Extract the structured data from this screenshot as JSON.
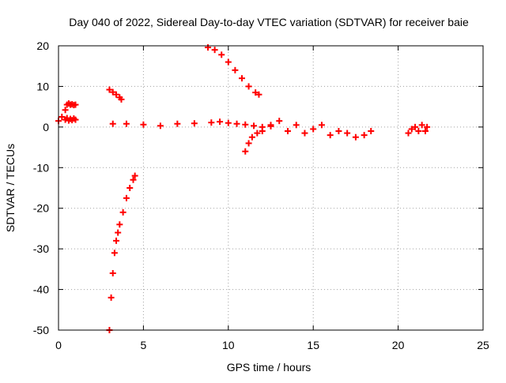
{
  "chart_data": {
    "type": "scatter",
    "title": "Day 040 of 2022, Sidereal Day-to-day VTEC variation (SDTVAR) for receiver baie",
    "xlabel": "GPS time / hours",
    "ylabel": "SDTVAR / TECUs",
    "xlim": [
      0,
      25
    ],
    "ylim": [
      -50,
      20
    ],
    "xticks": [
      0,
      5,
      10,
      15,
      20,
      25
    ],
    "yticks": [
      -50,
      -40,
      -30,
      -20,
      -10,
      0,
      10,
      20
    ],
    "grid": true,
    "marker": "+",
    "color": "#ff0000",
    "series": [
      {
        "segments": [
          {
            "x": [
              0.0,
              0.2,
              0.4,
              0.5,
              0.6,
              0.7,
              0.8,
              0.9,
              1.0
            ],
            "y": [
              1.5,
              2.5,
              1.8,
              2.2,
              1.6,
              2.0,
              1.7,
              2.1,
              1.8
            ]
          },
          {
            "x": [
              0.4,
              0.5,
              0.6,
              0.7,
              0.8,
              0.9,
              1.0
            ],
            "y": [
              4.2,
              5.5,
              5.8,
              5.5,
              5.6,
              5.4,
              5.5
            ]
          },
          {
            "x": [
              3.0,
              3.2,
              3.4,
              3.6,
              3.7
            ],
            "y": [
              9.2,
              8.6,
              8.0,
              7.3,
              6.8
            ]
          },
          {
            "x": [
              3.2,
              4,
              5,
              6,
              7,
              8,
              9,
              9.5,
              10,
              10.5,
              11,
              11.5,
              12,
              12.5
            ],
            "y": [
              0.8,
              0.8,
              0.6,
              0.3,
              0.8,
              0.9,
              1.1,
              1.3,
              1.0,
              0.8,
              0.6,
              0.3,
              0.0,
              0.2
            ]
          },
          {
            "x": [
              8.8,
              9.2,
              9.6,
              10.0,
              10.4,
              10.8,
              11.2,
              11.6,
              11.8
            ],
            "y": [
              19.6,
              19.0,
              17.8,
              16.0,
              14.0,
              12.0,
              10.0,
              8.5,
              8.0
            ]
          },
          {
            "x": [
              11.0,
              11.2,
              11.4,
              11.7,
              12.0,
              12.5,
              13.0,
              13.5,
              14.0,
              14.5,
              15.0,
              15.5,
              16.0,
              16.5,
              17.0,
              17.5,
              18.0,
              18.4
            ],
            "y": [
              -6.0,
              -4.0,
              -2.5,
              -1.5,
              -1.0,
              0.5,
              1.5,
              -1.0,
              0.5,
              -1.5,
              -0.5,
              0.5,
              -2.0,
              -1.0,
              -1.5,
              -2.5,
              -2.0,
              -1.0
            ]
          },
          {
            "x": [
              20.6,
              20.8,
              21.0,
              21.2,
              21.4,
              21.6,
              21.7
            ],
            "y": [
              -1.5,
              -0.5,
              0.0,
              -1.0,
              0.5,
              -1.0,
              0.0
            ]
          },
          {
            "x": [
              3.0,
              3.1,
              3.2,
              3.3,
              3.4,
              3.5,
              3.6,
              3.8,
              4.0,
              4.2,
              4.4,
              4.5
            ],
            "y": [
              -50,
              -42,
              -36,
              -31,
              -28,
              -26,
              -24,
              -21,
              -17.5,
              -15,
              -13,
              -12
            ]
          }
        ]
      }
    ]
  }
}
